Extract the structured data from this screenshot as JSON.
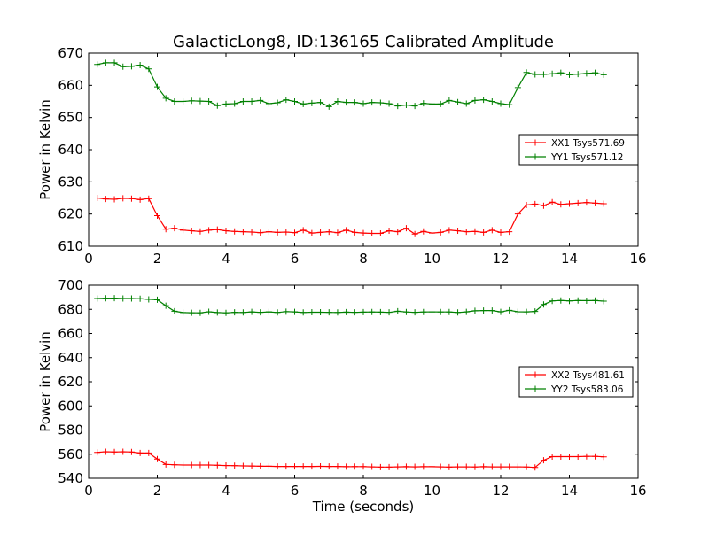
{
  "chart_data": [
    {
      "type": "line",
      "title": "GalacticLong8, ID:136165 Calibrated Amplitude",
      "xlabel": "",
      "ylabel": "Power in Kelvin",
      "xlim": [
        0,
        16
      ],
      "ylim": [
        610,
        670
      ],
      "xticks": [
        0,
        2,
        4,
        6,
        8,
        10,
        12,
        14,
        16
      ],
      "yticks": [
        610,
        620,
        630,
        640,
        650,
        660,
        670
      ],
      "grid": false,
      "legend_position": "center-right",
      "x": [
        0.25,
        0.5,
        0.75,
        1.0,
        1.25,
        1.5,
        1.75,
        2.0,
        2.25,
        2.5,
        2.75,
        3.0,
        3.25,
        3.5,
        3.75,
        4.0,
        4.25,
        4.5,
        4.75,
        5.0,
        5.25,
        5.5,
        5.75,
        6.0,
        6.25,
        6.5,
        6.75,
        7.0,
        7.25,
        7.5,
        7.75,
        8.0,
        8.25,
        8.5,
        8.75,
        9.0,
        9.25,
        9.5,
        9.75,
        10.0,
        10.25,
        10.5,
        10.75,
        11.0,
        11.25,
        11.5,
        11.75,
        12.0,
        12.25,
        12.5,
        12.75,
        13.0,
        13.25,
        13.5,
        13.75,
        14.0,
        14.25,
        14.5,
        14.75,
        15.0
      ],
      "series": [
        {
          "name": "XX1 Tsys571.69",
          "color": "#ff0000",
          "values": [
            625,
            624.7,
            624.6,
            624.9,
            624.8,
            624.5,
            624.8,
            619.5,
            615.3,
            615.6,
            615,
            614.8,
            614.6,
            615,
            615.2,
            614.8,
            614.6,
            614.5,
            614.4,
            614.2,
            614.5,
            614.3,
            614.4,
            614.2,
            615,
            614.1,
            614.3,
            614.5,
            614.2,
            615,
            614.3,
            614.1,
            614,
            614,
            614.8,
            614.5,
            615.6,
            613.8,
            614.6,
            614.1,
            614.3,
            615,
            614.8,
            614.5,
            614.6,
            614.3,
            615,
            614.3,
            614.5,
            620,
            622.8,
            623.1,
            622.6,
            623.7,
            623,
            623.2,
            623.4,
            623.6,
            623.4,
            623.2
          ]
        },
        {
          "name": "YY1 Tsys571.12",
          "color": "#008000",
          "values": [
            666.5,
            667,
            667,
            665.8,
            665.9,
            666.3,
            665.1,
            659.5,
            656,
            655,
            655,
            655.2,
            655.1,
            655,
            653.7,
            654.2,
            654.3,
            655,
            655,
            655.3,
            654.3,
            654.6,
            655.5,
            655,
            654.2,
            654.5,
            654.7,
            653.4,
            655,
            654.7,
            654.7,
            654.3,
            654.7,
            654.6,
            654.3,
            653.6,
            653.9,
            653.6,
            654.4,
            654.2,
            654.2,
            655.3,
            654.8,
            654.3,
            655.3,
            655.5,
            655,
            654.3,
            654,
            659.3,
            664,
            663.4,
            663.4,
            663.6,
            663.9,
            663.3,
            663.5,
            663.7,
            663.9,
            663.3
          ]
        }
      ]
    },
    {
      "type": "line",
      "title": "",
      "xlabel": "Time (seconds)",
      "ylabel": "Power in Kelvin",
      "xlim": [
        0,
        16
      ],
      "ylim": [
        540,
        700
      ],
      "xticks": [
        0,
        2,
        4,
        6,
        8,
        10,
        12,
        14,
        16
      ],
      "yticks": [
        540,
        560,
        580,
        600,
        620,
        640,
        660,
        680,
        700
      ],
      "grid": false,
      "legend_position": "center-right",
      "x": [
        0.25,
        0.5,
        0.75,
        1.0,
        1.25,
        1.5,
        1.75,
        2.0,
        2.25,
        2.5,
        2.75,
        3.0,
        3.25,
        3.5,
        3.75,
        4.0,
        4.25,
        4.5,
        4.75,
        5.0,
        5.25,
        5.5,
        5.75,
        6.0,
        6.25,
        6.5,
        6.75,
        7.0,
        7.25,
        7.5,
        7.75,
        8.0,
        8.25,
        8.5,
        8.75,
        9.0,
        9.25,
        9.5,
        9.75,
        10.0,
        10.25,
        10.5,
        10.75,
        11.0,
        11.25,
        11.5,
        11.75,
        12.0,
        12.25,
        12.5,
        12.75,
        13.0,
        13.25,
        13.5,
        13.75,
        14.0,
        14.25,
        14.5,
        14.75,
        15.0
      ],
      "series": [
        {
          "name": "XX2 Tsys481.61",
          "color": "#ff0000",
          "values": [
            561.5,
            562,
            561.8,
            562,
            561.8,
            561,
            561,
            556,
            551.5,
            551.2,
            551,
            551,
            551,
            551,
            550.8,
            550.6,
            550.5,
            550.3,
            550.2,
            550,
            550,
            549.8,
            549.8,
            549.8,
            549.8,
            549.8,
            549.9,
            549.8,
            549.8,
            549.6,
            549.7,
            549.7,
            549.5,
            549.3,
            549.3,
            549.5,
            549.6,
            549.5,
            549.6,
            549.6,
            549.5,
            549.3,
            549.5,
            549.5,
            549.4,
            549.6,
            549.5,
            549.5,
            549.5,
            549.5,
            549.4,
            549,
            555,
            558,
            558,
            558,
            558,
            558.2,
            558.2,
            557.8
          ]
        },
        {
          "name": "YY2 Tsys583.06",
          "color": "#008000",
          "values": [
            689,
            689.2,
            689.3,
            689,
            689,
            688.8,
            688.3,
            688,
            683,
            678.4,
            677.3,
            677.2,
            677.1,
            678,
            677.3,
            677.1,
            677.5,
            677.4,
            677.9,
            677.5,
            677.9,
            677.4,
            678.1,
            677.9,
            677.4,
            677.6,
            677.6,
            677.5,
            677.4,
            677.7,
            677.5,
            677.7,
            677.8,
            677.7,
            677.5,
            678.4,
            677.8,
            677.5,
            677.8,
            677.9,
            677.8,
            677.8,
            677.4,
            677.9,
            678.8,
            679,
            679,
            677.9,
            679.2,
            678,
            677.9,
            678.3,
            684,
            687,
            687.3,
            687,
            687.3,
            687.2,
            687.3,
            686.8
          ]
        }
      ]
    }
  ]
}
